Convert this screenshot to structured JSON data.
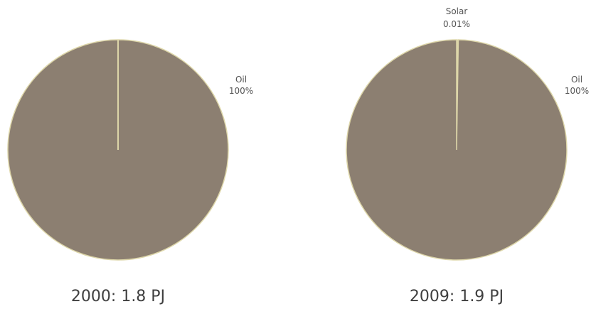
{
  "chart_data": [
    {
      "type": "pie",
      "title": "2000: 1.8 PJ",
      "slices": [
        {
          "label": "Oil",
          "value": 100,
          "value_label": "100%"
        }
      ],
      "colors": {
        "slice_fill": "#8c7f71",
        "slice_border": "#ddd6a9",
        "text": "#555555"
      }
    },
    {
      "type": "pie",
      "title": "2009: 1.9 PJ",
      "slices": [
        {
          "label": "Oil",
          "value": 99.99,
          "value_label": "100%"
        },
        {
          "label": "Solar",
          "value": 0.01,
          "value_label": "0.01%"
        }
      ],
      "colors": {
        "slice_fill": "#8c7f71",
        "slice_border": "#ddd6a9",
        "text": "#555555"
      }
    }
  ]
}
